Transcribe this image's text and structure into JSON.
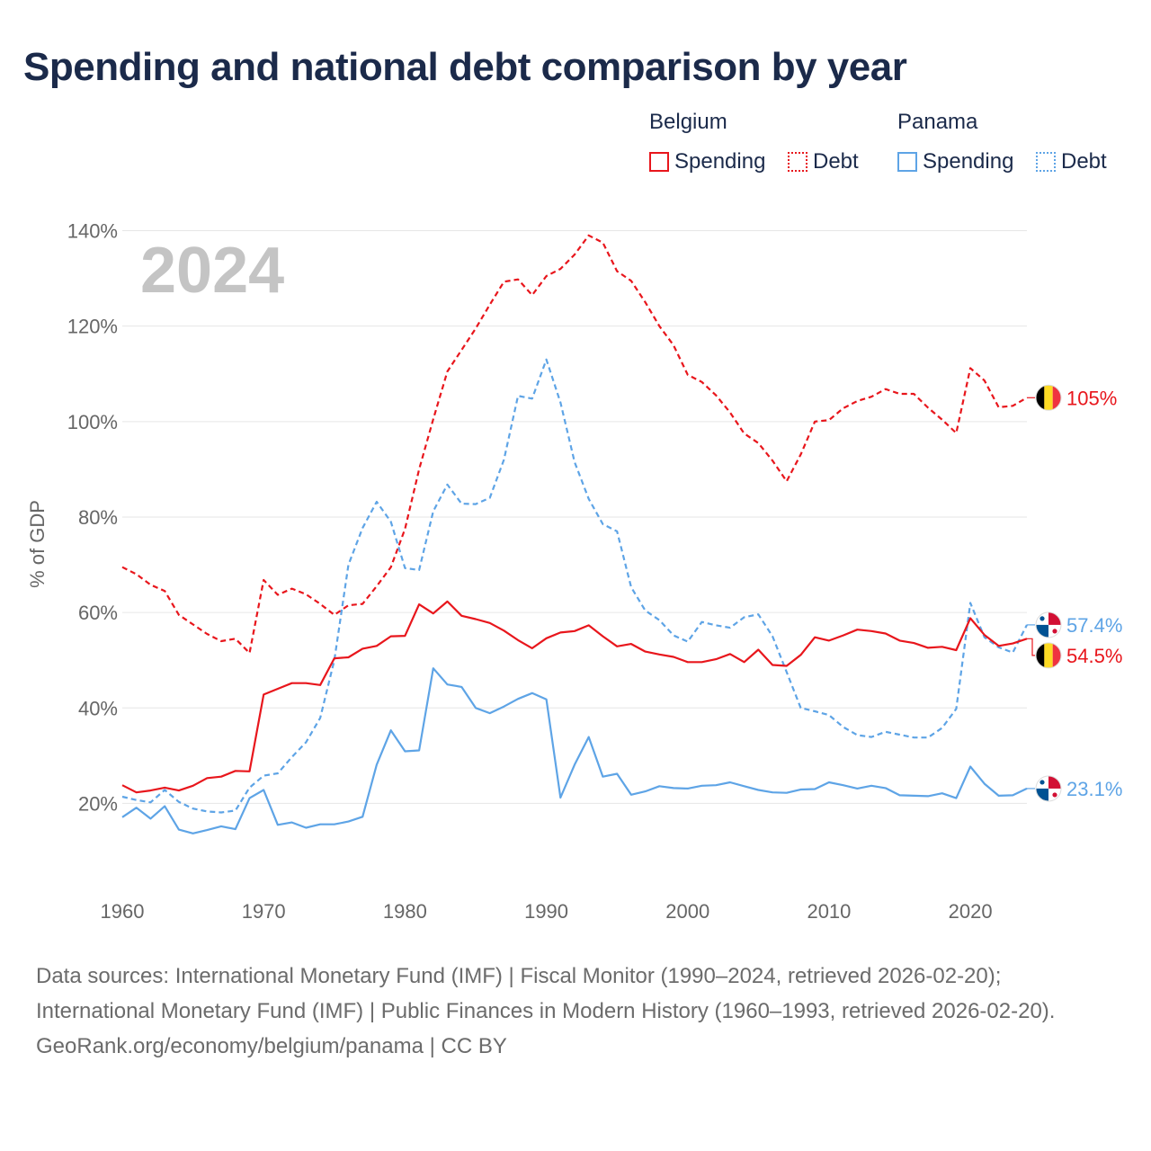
{
  "title": "Spending and national debt comparison by year",
  "legend": {
    "groups": [
      {
        "country": "Belgium",
        "items": [
          "Spending",
          "Debt"
        ]
      },
      {
        "country": "Panama",
        "items": [
          "Spending",
          "Debt"
        ]
      }
    ]
  },
  "colors": {
    "belgium": "#e8161c",
    "panama": "#5ea4e6",
    "grid": "#e6e6e6",
    "axis_text": "#666666",
    "year_watermark": "#c4c4c4"
  },
  "footer": {
    "sources": "Data sources: International Monetary Fund (IMF) | Fiscal Monitor (1990–2024, retrieved 2026-02-20); International Monetary Fund (IMF) | Public Finances in Modern History (1960–1993, retrieved 2026-02-20).",
    "attribution": "GeoRank.org/economy/belgium/panama | CC BY"
  },
  "chart_data": {
    "type": "line",
    "title": "Spending and national debt comparison by year",
    "year_label": "2024",
    "xlabel": "",
    "ylabel": "% of GDP",
    "xlim": [
      1960,
      2024
    ],
    "ylim": [
      5,
      145
    ],
    "x_ticks": [
      1960,
      1970,
      1980,
      1990,
      2000,
      2010,
      2020
    ],
    "y_ticks": [
      20,
      40,
      60,
      80,
      100,
      120,
      140
    ],
    "y_tick_labels": [
      "20%",
      "40%",
      "60%",
      "80%",
      "100%",
      "120%",
      "140%"
    ],
    "grid": true,
    "series": [
      {
        "name": "Belgium Debt",
        "country": "Belgium",
        "metric": "Debt",
        "style": "dashed",
        "color": "#e8161c",
        "end_label": "105%",
        "flag": "belgium",
        "x": [
          1960,
          1961,
          1962,
          1963,
          1964,
          1965,
          1966,
          1967,
          1968,
          1969,
          1970,
          1971,
          1972,
          1973,
          1974,
          1975,
          1976,
          1977,
          1978,
          1979,
          1980,
          1981,
          1982,
          1983,
          1984,
          1985,
          1986,
          1987,
          1988,
          1989,
          1990,
          1991,
          1992,
          1993,
          1994,
          1995,
          1996,
          1997,
          1998,
          1999,
          2000,
          2001,
          2002,
          2003,
          2004,
          2005,
          2006,
          2007,
          2008,
          2009,
          2010,
          2011,
          2012,
          2013,
          2014,
          2015,
          2016,
          2017,
          2018,
          2019,
          2020,
          2021,
          2022,
          2023,
          2024
        ],
        "y": [
          69.5,
          68,
          65.8,
          64.5,
          59.5,
          57.5,
          55.5,
          54,
          54.5,
          51.5,
          66.8,
          63.7,
          65,
          63.8,
          61.8,
          59.5,
          61.5,
          61.8,
          65.5,
          69.5,
          77.5,
          90,
          100.5,
          110.5,
          115,
          119.5,
          124.5,
          129.3,
          129.8,
          126.5,
          130.5,
          132,
          135,
          139,
          137.5,
          131.5,
          129.5,
          125,
          120,
          116,
          109.8,
          108.3,
          105.5,
          101.9,
          97.5,
          95.5,
          91.8,
          87.5,
          93.1,
          100,
          100.3,
          102.8,
          104.3,
          105.2,
          106.8,
          105.8,
          105.8,
          102.9,
          100.4,
          97.6,
          111.2,
          108.6,
          103,
          103.3,
          105
        ]
      },
      {
        "name": "Panama Debt",
        "country": "Panama",
        "metric": "Debt",
        "style": "dashed",
        "color": "#5ea4e6",
        "end_label": "57.4%",
        "flag": "panama",
        "x": [
          1960,
          1961,
          1962,
          1963,
          1964,
          1965,
          1966,
          1967,
          1968,
          1969,
          1970,
          1971,
          1972,
          1973,
          1974,
          1975,
          1976,
          1977,
          1978,
          1979,
          1980,
          1981,
          1982,
          1983,
          1984,
          1985,
          1986,
          1987,
          1988,
          1989,
          1990,
          1991,
          1992,
          1993,
          1994,
          1995,
          1996,
          1997,
          1998,
          1999,
          2000,
          2001,
          2002,
          2003,
          2004,
          2005,
          2006,
          2007,
          2008,
          2009,
          2010,
          2011,
          2012,
          2013,
          2014,
          2015,
          2016,
          2017,
          2018,
          2019,
          2020,
          2021,
          2022,
          2023,
          2024
        ],
        "y": [
          21.4,
          20.7,
          20.2,
          22.8,
          20.3,
          18.9,
          18.3,
          18.1,
          18.5,
          23.3,
          25.8,
          26.3,
          29.7,
          32.8,
          37.9,
          50,
          70,
          77.7,
          83.2,
          79,
          69.3,
          68.9,
          81.2,
          86.8,
          82.8,
          82.7,
          84,
          92,
          105.4,
          104.8,
          113,
          104,
          91.5,
          83.8,
          78.5,
          77,
          65.3,
          60.4,
          58.4,
          55.2,
          53.9,
          58,
          57.3,
          56.8,
          59,
          59.6,
          55,
          47.5,
          40,
          39.3,
          38.5,
          36,
          34.3,
          33.9,
          35,
          34.4,
          33.8,
          33.8,
          35.8,
          39.8,
          62,
          54.8,
          52.7,
          51.6,
          57.4
        ]
      },
      {
        "name": "Belgium Spending",
        "country": "Belgium",
        "metric": "Spending",
        "style": "solid",
        "color": "#e8161c",
        "end_label": "54.5%",
        "flag": "belgium",
        "x": [
          1960,
          1961,
          1962,
          1963,
          1964,
          1965,
          1966,
          1967,
          1968,
          1969,
          1970,
          1971,
          1972,
          1973,
          1974,
          1975,
          1976,
          1977,
          1978,
          1979,
          1980,
          1981,
          1982,
          1983,
          1984,
          1985,
          1986,
          1987,
          1988,
          1989,
          1990,
          1991,
          1992,
          1993,
          1994,
          1995,
          1996,
          1997,
          1998,
          1999,
          2000,
          2001,
          2002,
          2003,
          2004,
          2005,
          2006,
          2007,
          2008,
          2009,
          2010,
          2011,
          2012,
          2013,
          2014,
          2015,
          2016,
          2017,
          2018,
          2019,
          2020,
          2021,
          2022,
          2023,
          2024
        ],
        "y": [
          23.8,
          22.3,
          22.7,
          23.3,
          22.7,
          23.7,
          25.3,
          25.6,
          26.8,
          26.7,
          42.8,
          44,
          45.2,
          45.2,
          44.8,
          50.4,
          50.6,
          52.4,
          53,
          55,
          55.1,
          61.7,
          59.8,
          62.3,
          59.3,
          58.6,
          57.8,
          56.2,
          54.2,
          52.5,
          54.6,
          55.8,
          56.1,
          57.3,
          55,
          52.9,
          53.4,
          51.8,
          51.2,
          50.7,
          49.6,
          49.6,
          50.2,
          51.3,
          49.6,
          52.2,
          49,
          48.8,
          51.1,
          54.8,
          54.1,
          55.2,
          56.4,
          56.1,
          55.6,
          54.1,
          53.6,
          52.6,
          52.8,
          52.1,
          58.8,
          55.3,
          53,
          53.5,
          54.5
        ]
      },
      {
        "name": "Panama Spending",
        "country": "Panama",
        "metric": "Spending",
        "style": "solid",
        "color": "#5ea4e6",
        "end_label": "23.1%",
        "flag": "panama",
        "x": [
          1960,
          1961,
          1962,
          1963,
          1964,
          1965,
          1966,
          1967,
          1968,
          1969,
          1970,
          1971,
          1972,
          1973,
          1974,
          1975,
          1976,
          1977,
          1978,
          1979,
          1980,
          1981,
          1982,
          1983,
          1984,
          1985,
          1986,
          1987,
          1988,
          1989,
          1990,
          1991,
          1992,
          1993,
          1994,
          1995,
          1996,
          1997,
          1998,
          1999,
          2000,
          2001,
          2002,
          2003,
          2004,
          2005,
          2006,
          2007,
          2008,
          2009,
          2010,
          2011,
          2012,
          2013,
          2014,
          2015,
          2016,
          2017,
          2018,
          2019,
          2020,
          2021,
          2022,
          2023,
          2024
        ],
        "y": [
          17.1,
          19.1,
          16.8,
          19.4,
          14.5,
          13.7,
          14.4,
          15.2,
          14.6,
          21.1,
          22.8,
          15.5,
          16,
          14.9,
          15.6,
          15.6,
          16.2,
          17.2,
          28.1,
          35.3,
          30.9,
          31.1,
          48.3,
          44.9,
          44.4,
          40,
          38.9,
          40.3,
          41.9,
          43.1,
          41.8,
          21.2,
          28.1,
          33.9,
          25.6,
          26.2,
          21.8,
          22.5,
          23.6,
          23.2,
          23.1,
          23.7,
          23.8,
          24.4,
          23.6,
          22.8,
          22.3,
          22.2,
          22.9,
          23,
          24.4,
          23.8,
          23.1,
          23.7,
          23.2,
          21.7,
          21.6,
          21.5,
          22.1,
          21.1,
          27.7,
          24.1,
          21.6,
          21.7,
          23.1
        ]
      }
    ]
  }
}
